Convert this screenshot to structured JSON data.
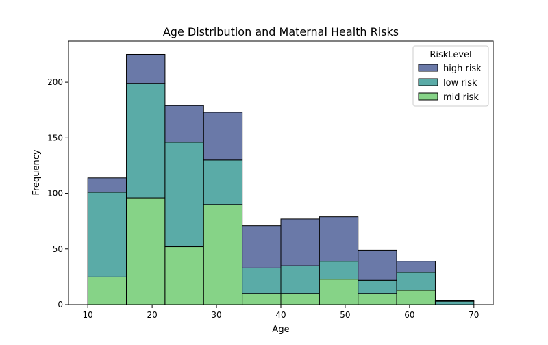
{
  "chart_data": {
    "type": "bar",
    "stacked": true,
    "histogram": true,
    "title": "Age Distribution and Maternal Health Risks",
    "xlabel": "Age",
    "ylabel": "Frequency",
    "xlim": [
      7,
      73
    ],
    "ylim": [
      0,
      237
    ],
    "x_ticks": [
      10,
      20,
      30,
      40,
      50,
      60,
      70
    ],
    "y_ticks": [
      0,
      50,
      100,
      150,
      200
    ],
    "bin_edges": [
      10,
      16,
      22,
      28,
      34,
      40,
      46,
      52,
      58,
      64,
      70
    ],
    "legend": {
      "title": "RiskLevel",
      "placement": "top-right"
    },
    "series": [
      {
        "name": "mid risk",
        "color": "#86d387",
        "values": [
          25,
          96,
          52,
          90,
          10,
          10,
          23,
          10,
          13,
          0
        ]
      },
      {
        "name": "low risk",
        "color": "#5aaba7",
        "values": [
          76,
          103,
          94,
          40,
          23,
          25,
          16,
          12,
          16,
          3
        ]
      },
      {
        "name": "high risk",
        "color": "#6a79a8",
        "values": [
          13,
          26,
          33,
          43,
          38,
          42,
          40,
          27,
          10,
          1
        ]
      }
    ],
    "legend_order": [
      "high risk",
      "low risk",
      "mid risk"
    ],
    "grid": false
  }
}
